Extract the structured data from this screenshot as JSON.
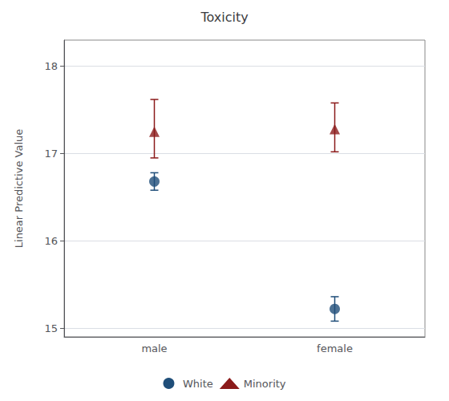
{
  "chart_data": {
    "type": "scatter",
    "title": "Toxicity",
    "ylabel": "Linear Predictive Value",
    "categories": [
      "male",
      "female"
    ],
    "series": [
      {
        "name": "White",
        "color": "#1f4e79",
        "marker": "o",
        "values": [
          16.68,
          15.22
        ],
        "ci_lower": [
          16.58,
          15.08
        ],
        "ci_upper": [
          16.78,
          15.36
        ]
      },
      {
        "name": "Minority",
        "color": "#8b1a1a",
        "marker": "^",
        "values": [
          17.25,
          17.28
        ],
        "ci_lower": [
          16.95,
          17.02
        ],
        "ci_upper": [
          17.62,
          17.58
        ]
      }
    ],
    "ylim": [
      14.9,
      18.3
    ],
    "yticks": [
      15,
      16,
      17,
      18
    ],
    "grid": true,
    "legend": "bottom"
  }
}
